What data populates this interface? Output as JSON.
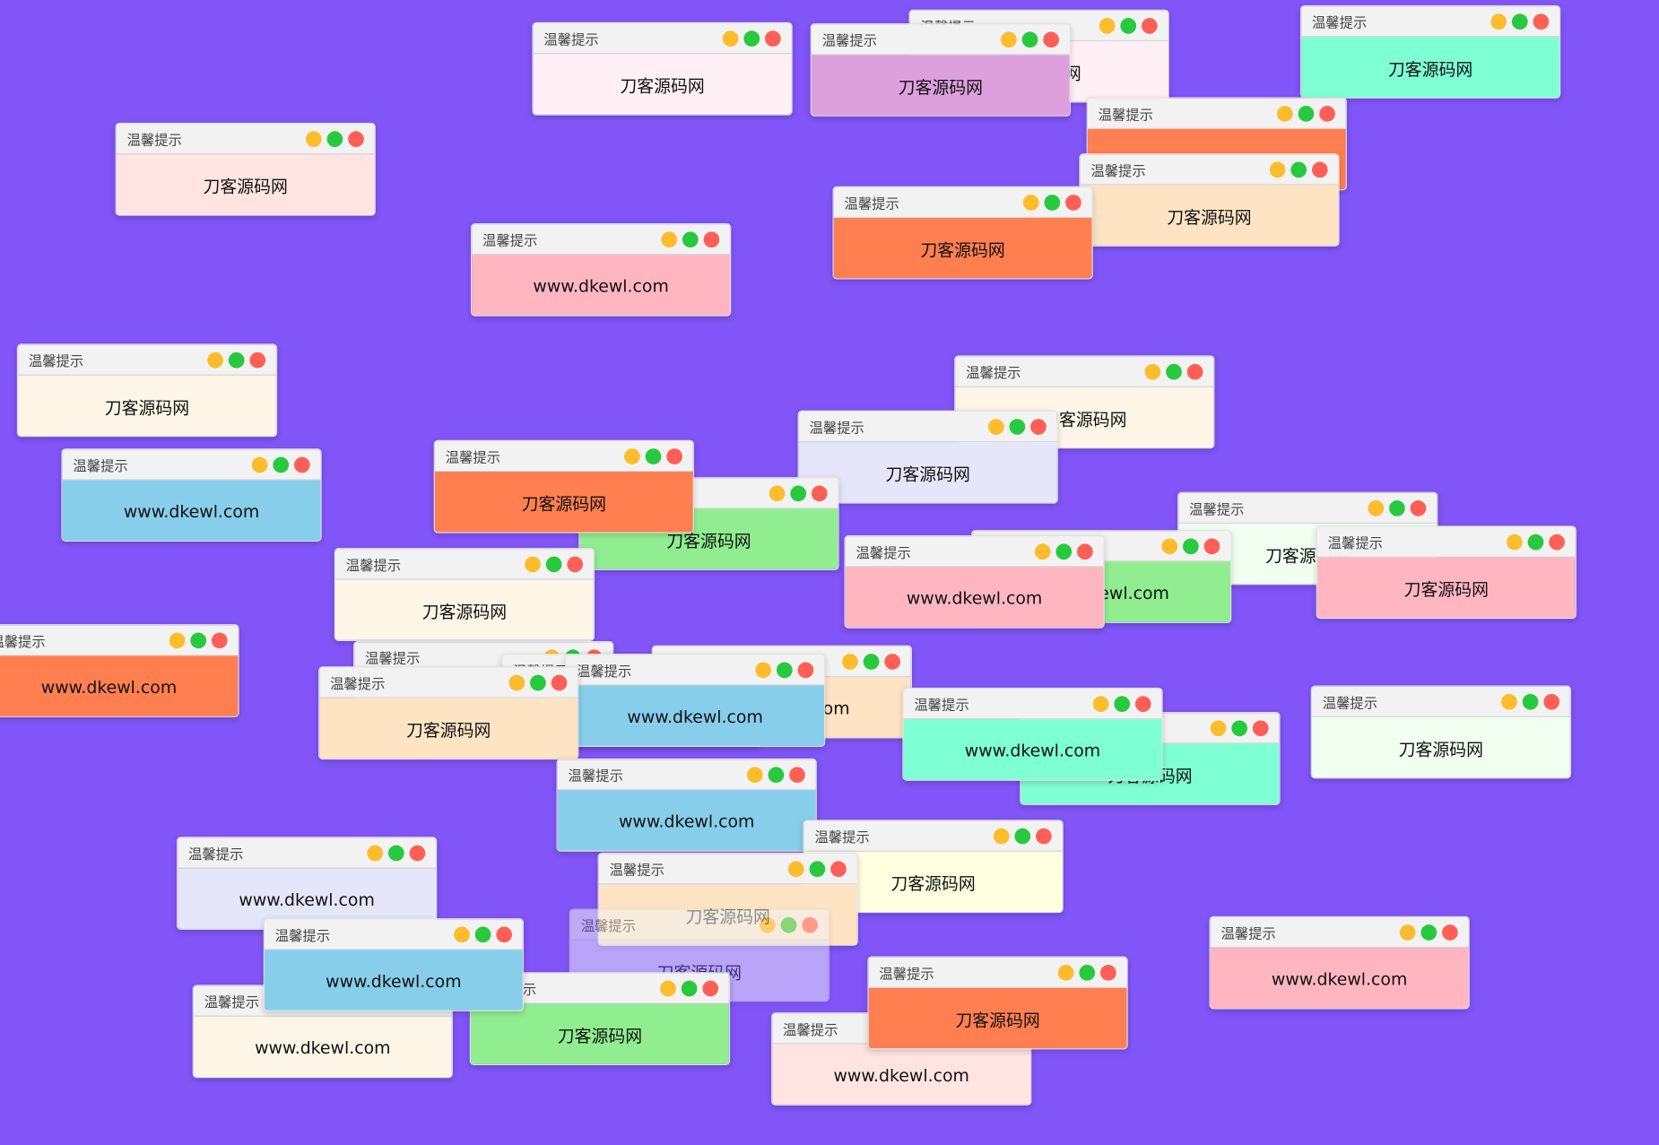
{
  "background_color": "#8155f7",
  "dot_colors": {
    "minimize": "#fdbc2c",
    "maximize": "#27c93f",
    "close": "#ff5f56"
  },
  "windows": [
    {
      "title": "温馨提示",
      "text": "刀客源码网",
      "bg": "#fff0f5"
    },
    {
      "title": "温馨提示",
      "text": "刀客源码网",
      "bg": "#fff0f5"
    },
    {
      "title": "温馨提示",
      "text": "刀客源码网",
      "bg": "#dda0dd"
    },
    {
      "title": "温馨提示",
      "text": "刀客源码网",
      "bg": "#7fffd4"
    },
    {
      "title": "温馨提示",
      "text": "",
      "bg": "#ff7f50"
    },
    {
      "title": "温馨提示",
      "text": "刀客源码网",
      "bg": "#ffe4c4"
    },
    {
      "title": "温馨提示",
      "text": "刀客源码网",
      "bg": "#ffe4e1"
    },
    {
      "title": "温馨提示",
      "text": "刀客源码网",
      "bg": "#ff7f50"
    },
    {
      "title": "温馨提示",
      "text": "www.dkewl.com",
      "bg": "#ffb6c1"
    },
    {
      "title": "温馨提示",
      "text": "刀客源码网",
      "bg": "#fdf5e6"
    },
    {
      "title": "温馨提示",
      "text": "刀客源码网",
      "bg": "#fdf5e6"
    },
    {
      "title": "温馨提示",
      "text": "刀客源码网",
      "bg": "#e6e6fa"
    },
    {
      "title": "温馨提示",
      "text": "www.dkewl.com",
      "bg": "#87ceeb"
    },
    {
      "title": "温馨提示",
      "text": "刀客源码网",
      "bg": "#90ee90"
    },
    {
      "title": "温馨提示",
      "text": "刀客源码网",
      "bg": "#ff7f50"
    },
    {
      "title": "温馨提示",
      "text": "刀客源码网",
      "bg": "#f0fff0"
    },
    {
      "title": "温馨提示",
      "text": "www.dkewl.com",
      "bg": "#90ee90"
    },
    {
      "title": "温馨提示",
      "text": "刀客源码网",
      "bg": "#ffb6c1"
    },
    {
      "title": "温馨提示",
      "text": "www.dkewl.com",
      "bg": "#ffb6c1"
    },
    {
      "title": "温馨提示",
      "text": "刀客源码网",
      "bg": "#fdf5e6"
    },
    {
      "title": "温馨提示",
      "text": "www.dkewl.com",
      "bg": "#ff7f50"
    },
    {
      "title": "温馨提示",
      "text": "",
      "bg": "#fdf5e6"
    },
    {
      "title": "温馨提示",
      "text": "",
      "bg": "#fdf5e6"
    },
    {
      "title": "温馨提示",
      "text": "www.dkewl.com",
      "bg": "#ffe4c4"
    },
    {
      "title": "温馨提示",
      "text": "www.dkewl.com",
      "bg": "#87ceeb"
    },
    {
      "title": "温馨提示",
      "text": "刀客源码网",
      "bg": "#ffe4c4"
    },
    {
      "title": "温馨提示",
      "text": "刀客源码网",
      "bg": "#7fffd4"
    },
    {
      "title": "温馨提示",
      "text": "www.dkewl.com",
      "bg": "#7fffd4"
    },
    {
      "title": "温馨提示",
      "text": "刀客源码网",
      "bg": "#f0fff0"
    },
    {
      "title": "温馨提示",
      "text": "www.dkewl.com",
      "bg": "#87ceeb"
    },
    {
      "title": "温馨提示",
      "text": "刀客源码网",
      "bg": "#ffffe0"
    },
    {
      "title": "温馨提示",
      "text": "刀客源码网",
      "bg": "#ffe4c4"
    },
    {
      "title": "温馨提示",
      "text": "www.dkewl.com",
      "bg": "#e6e6fa"
    },
    {
      "title": "温馨提示",
      "text": "刀客源码网",
      "bg": "#e6e6fa"
    },
    {
      "title": "温馨提示",
      "text": "刀客源码网",
      "bg": "#90ee90"
    },
    {
      "title": "温馨提示",
      "text": "www.dkewl.com",
      "bg": "#fdf5e6"
    },
    {
      "title": "温馨提示",
      "text": "www.dkewl.com",
      "bg": "#87ceeb"
    },
    {
      "title": "温馨提示",
      "text": "www.dkewl.com",
      "bg": "#ffe4e1"
    },
    {
      "title": "温馨提示",
      "text": "刀客源码网",
      "bg": "#ff7f50"
    },
    {
      "title": "温馨提示",
      "text": "www.dkewl.com",
      "bg": "#ffb6c1"
    }
  ]
}
